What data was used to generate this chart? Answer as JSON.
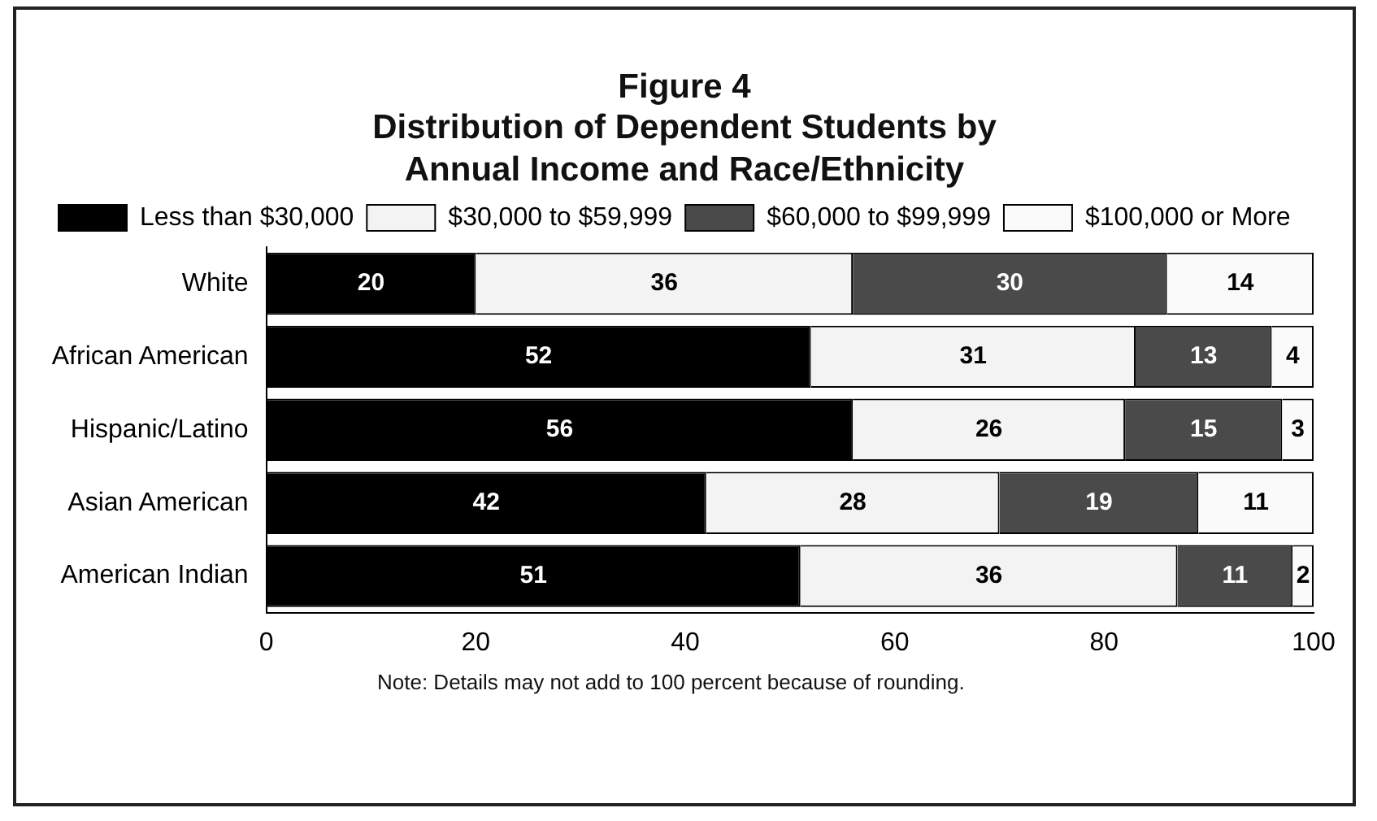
{
  "chart_data": {
    "type": "bar",
    "orientation": "horizontal",
    "stacked": true,
    "title": "Figure 4",
    "subtitle": "Distribution of Dependent Students by Annual Income and Race/Ethnicity",
    "categories": [
      "White",
      "African American",
      "Hispanic/Latino",
      "Asian American",
      "American Indian"
    ],
    "series": [
      {
        "name": "Less than $30,000",
        "color": "#000000",
        "values": [
          20,
          52,
          56,
          42,
          51
        ]
      },
      {
        "name": "$30,000 to $59,999",
        "color": "#f3f3f3",
        "values": [
          36,
          31,
          26,
          28,
          36
        ]
      },
      {
        "name": "$60,000 to $99,999",
        "color": "#4a4a4a",
        "values": [
          30,
          13,
          15,
          19,
          11
        ]
      },
      {
        "name": "$100,000 or More",
        "color": "#fafafa",
        "values": [
          14,
          4,
          3,
          11,
          2
        ]
      }
    ],
    "xlim": [
      0,
      100
    ],
    "xticks": [
      0,
      20,
      40,
      60,
      80,
      100
    ],
    "grid": false,
    "legend": "top",
    "data_labels": true,
    "annotations": [
      "Note:  Details may not add to 100 percent because of rounding."
    ]
  }
}
